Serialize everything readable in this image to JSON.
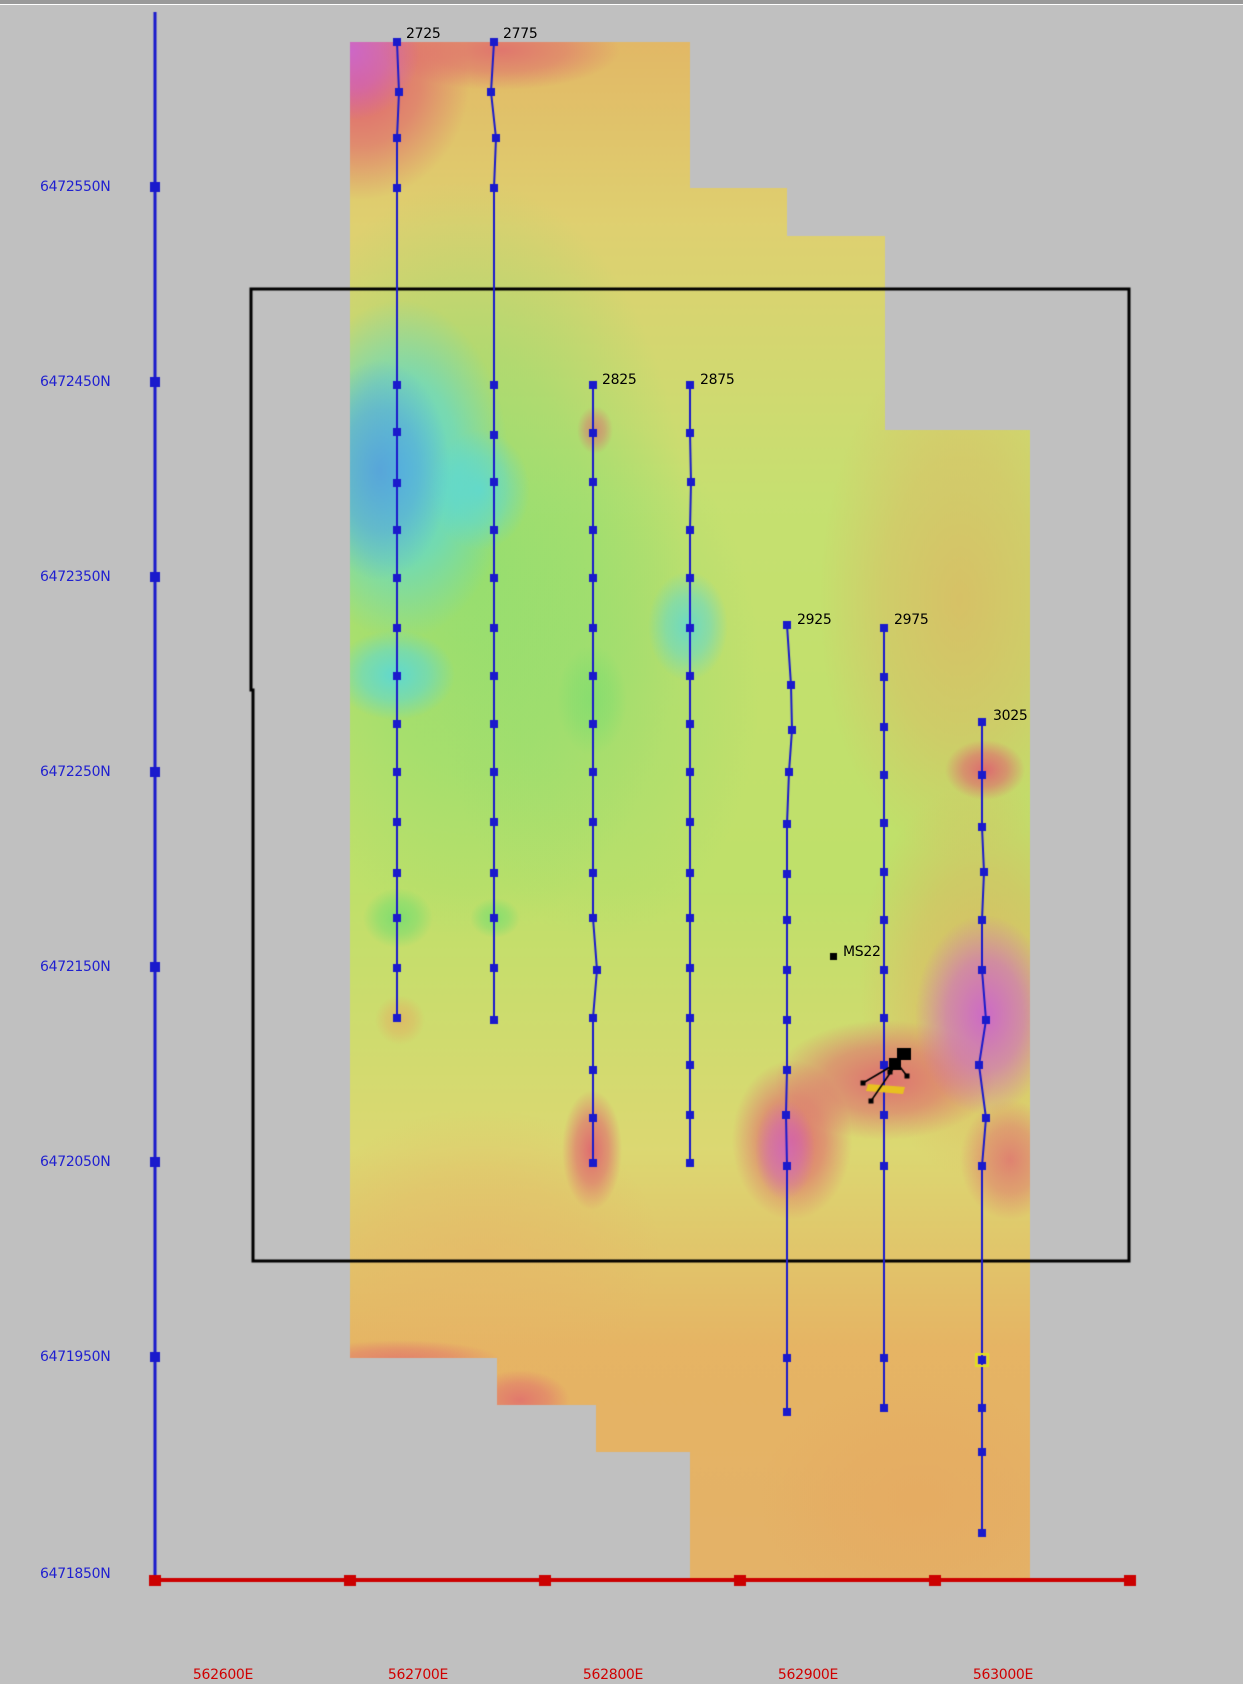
{
  "map": {
    "northing_labels": [
      "6472550N",
      "6472450N",
      "6472350N",
      "6472250N",
      "6472150N",
      "6472050N",
      "6471950N",
      "6471850N"
    ],
    "easting_labels": [
      "562600E",
      "562700E",
      "562800E",
      "562900E",
      "563000E"
    ],
    "survey_lines": [
      {
        "label": "2725"
      },
      {
        "label": "2775"
      },
      {
        "label": "2825"
      },
      {
        "label": "2875"
      },
      {
        "label": "2925"
      },
      {
        "label": "2975"
      },
      {
        "label": "3025"
      }
    ],
    "station_marker": {
      "label": "MS22"
    },
    "colors": {
      "background": "#c0c0c0",
      "survey_line": "#1a1acc",
      "north_axis": "#1a1acc",
      "east_axis": "#cc0000",
      "boundary": "#000000",
      "magenta": "#cc66cc",
      "red": "#e06070",
      "orange": "#e6a860",
      "yellow": "#e0e070",
      "green": "#70dd70",
      "cyan": "#55d8e0",
      "blue": "#5599dd"
    }
  }
}
